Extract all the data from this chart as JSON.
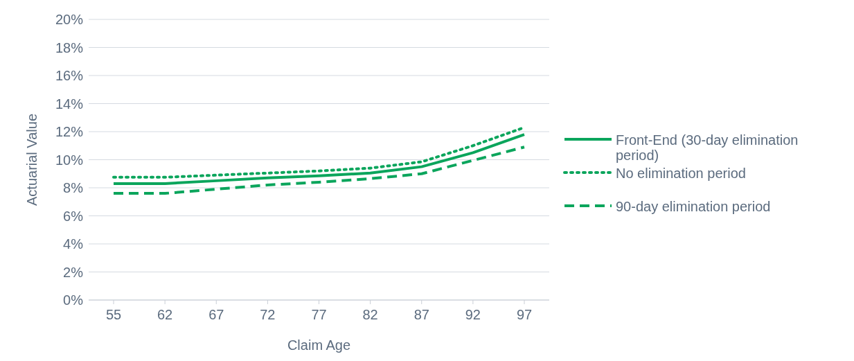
{
  "chart_data": {
    "type": "line",
    "xlabel": "Claim Age",
    "ylabel": "Actuarial Value",
    "categories": [
      "55",
      "62",
      "67",
      "72",
      "77",
      "82",
      "87",
      "92",
      "97"
    ],
    "series": [
      {
        "name": "Front-End (30-day elimination period)",
        "color": "#0ba55c",
        "line_style": "solid",
        "values": [
          8.3,
          8.3,
          8.5,
          8.7,
          8.85,
          9.05,
          9.5,
          10.5,
          11.8
        ]
      },
      {
        "name": "No elimination period",
        "color": "#0ba55c",
        "line_style": "dotted",
        "values": [
          8.75,
          8.75,
          8.9,
          9.05,
          9.2,
          9.4,
          9.85,
          11.0,
          12.3
        ]
      },
      {
        "name": "90-day elimination period",
        "color": "#0ba55c",
        "line_style": "dashed",
        "values": [
          7.6,
          7.6,
          7.9,
          8.2,
          8.4,
          8.65,
          9.0,
          9.95,
          10.9
        ]
      }
    ],
    "ylim": [
      0,
      20
    ],
    "yticks": [
      {
        "value": 0,
        "label": "0%"
      },
      {
        "value": 2,
        "label": "2%"
      },
      {
        "value": 4,
        "label": "4%"
      },
      {
        "value": 6,
        "label": "6%"
      },
      {
        "value": 8,
        "label": "8%"
      },
      {
        "value": 10,
        "label": "10%"
      },
      {
        "value": 12,
        "label": "12%"
      },
      {
        "value": 14,
        "label": "14%"
      },
      {
        "value": 16,
        "label": "16%"
      },
      {
        "value": 18,
        "label": "18%"
      },
      {
        "value": 20,
        "label": "20%"
      }
    ],
    "grid": "y",
    "legend": "right",
    "marker": "none"
  }
}
